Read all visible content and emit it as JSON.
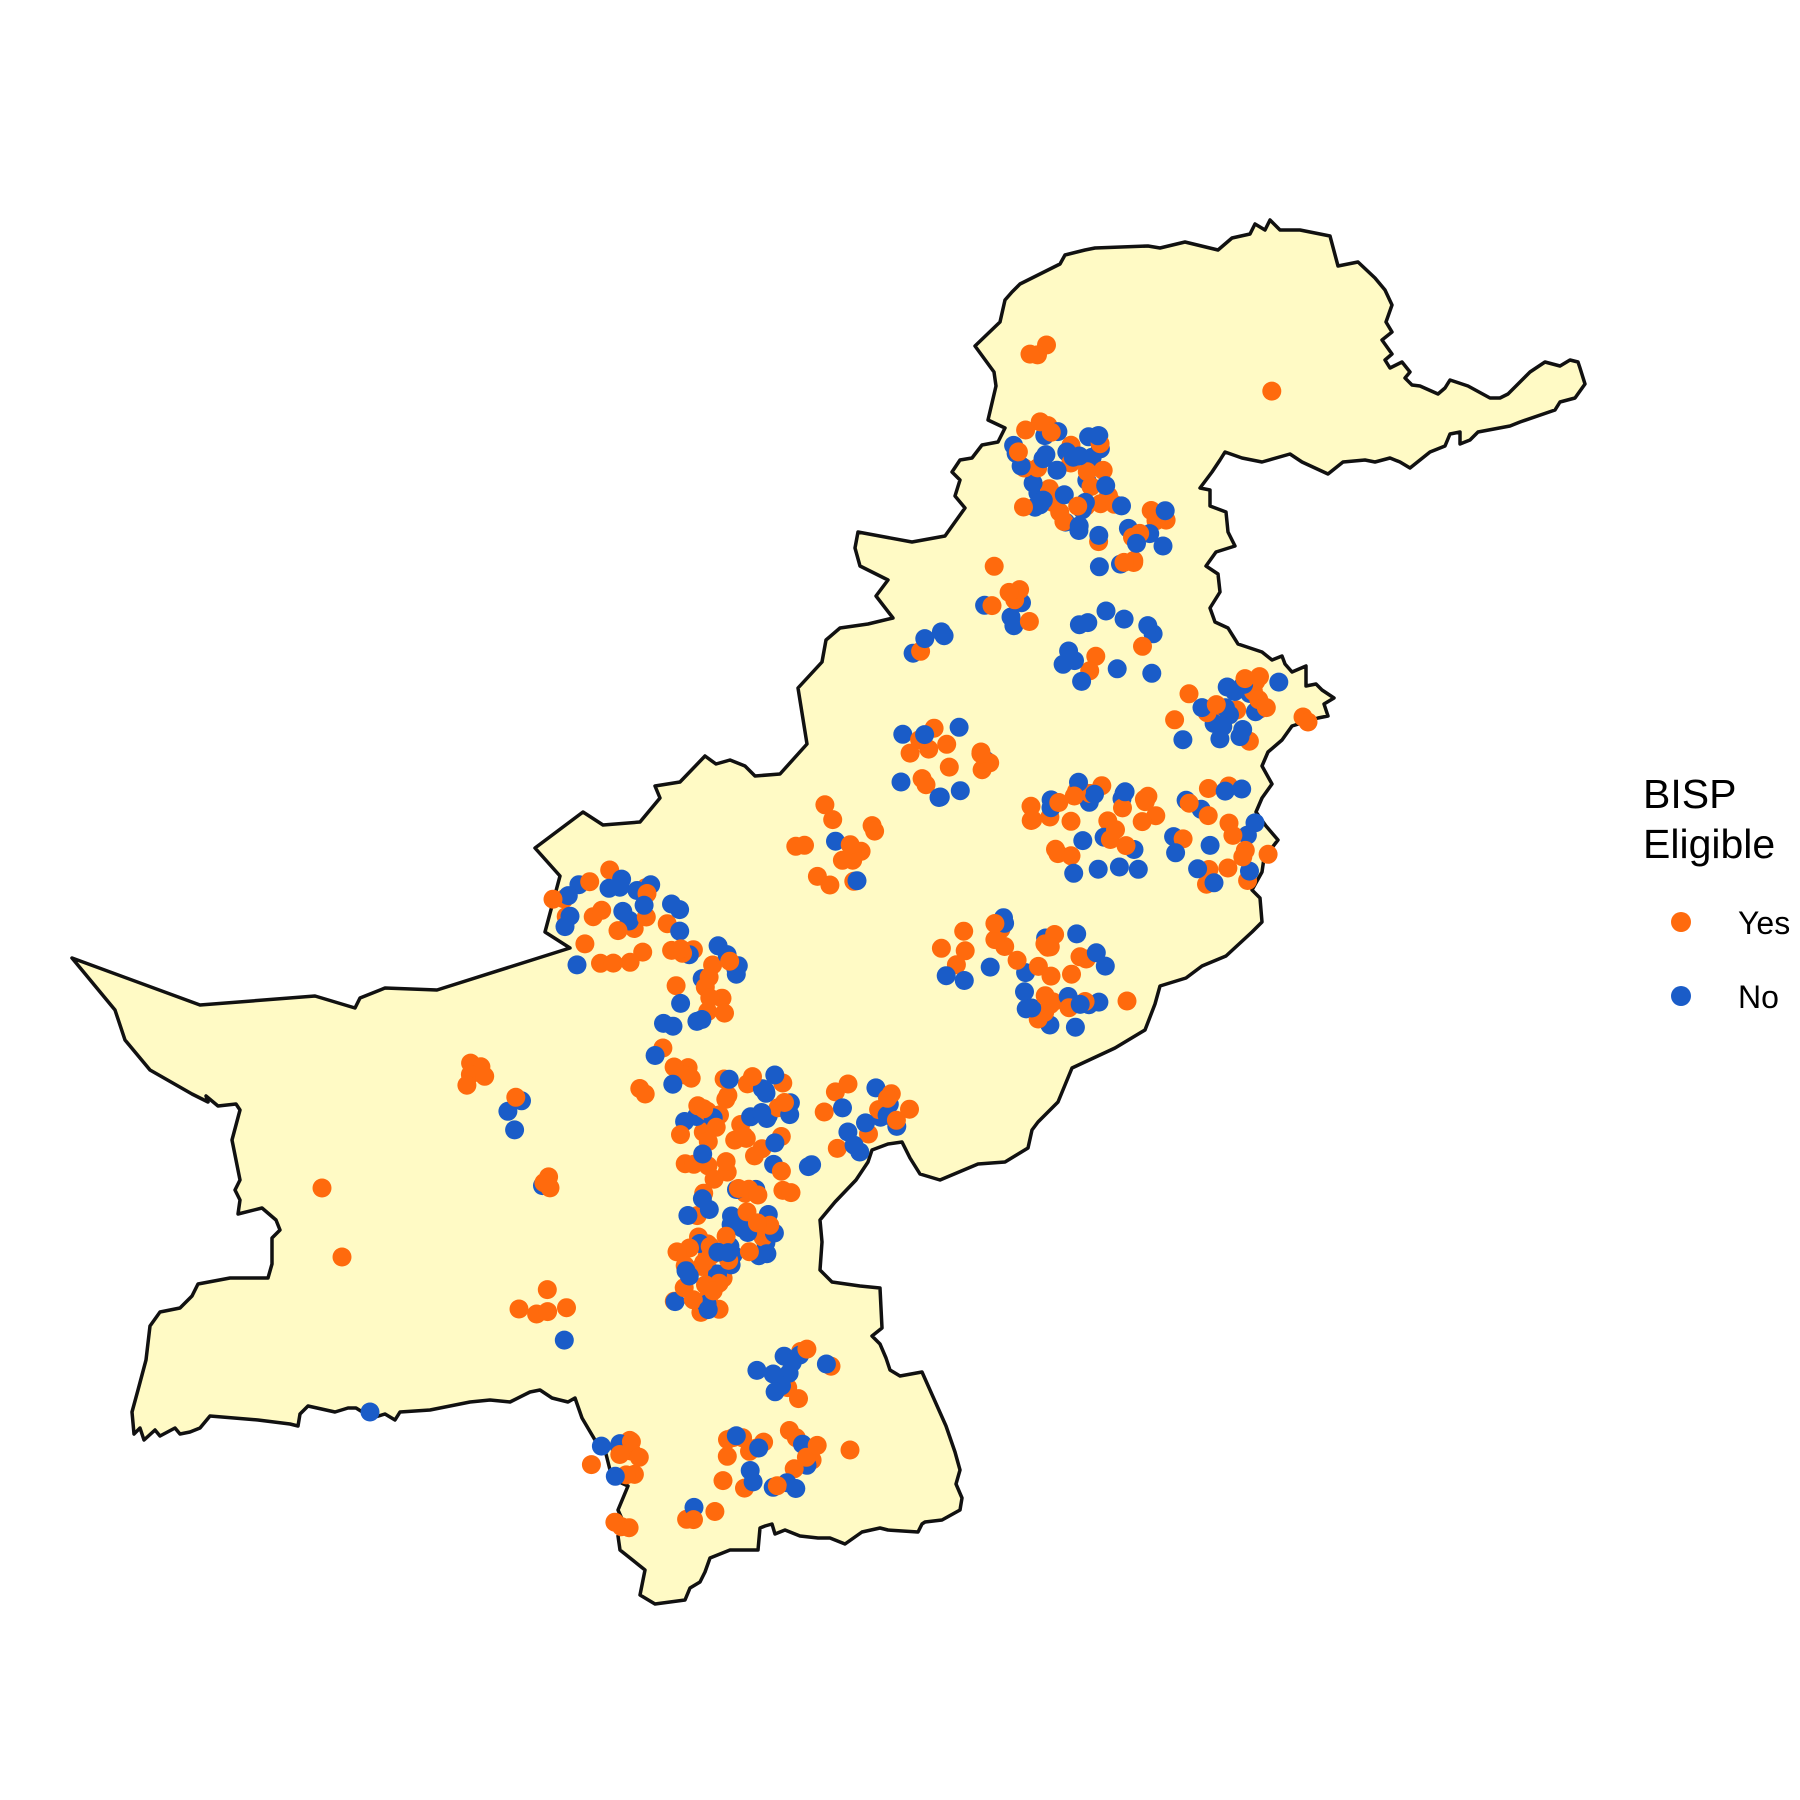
{
  "map": {
    "region": "Pakistan",
    "land_color": "#FFFAC5",
    "border_color": "#111111"
  },
  "legend": {
    "title_line1": "BISP",
    "title_line2": "Eligible",
    "items": [
      {
        "label": "Yes",
        "color": "#FF6A0D"
      },
      {
        "label": "No",
        "color": "#1A5CC8"
      }
    ]
  }
}
